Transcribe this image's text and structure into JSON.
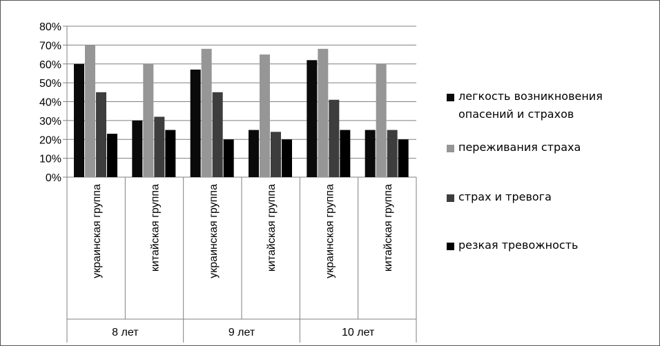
{
  "chart_data": {
    "type": "bar",
    "title": "",
    "xlabel": "",
    "ylabel": "",
    "ylim": [
      0,
      0.8
    ],
    "yticks": [
      "0%",
      "10%",
      "20%",
      "30%",
      "40%",
      "50%",
      "60%",
      "70%",
      "80%"
    ],
    "grid": true,
    "legend_position": "right",
    "groups": [
      {
        "label": "8 лет",
        "categories": [
          "украинская группа",
          "китайская группа"
        ]
      },
      {
        "label": "9 лет",
        "categories": [
          "украинская группа",
          "китайская группа"
        ]
      },
      {
        "label": "10 лет",
        "categories": [
          "украинская группа",
          "китайская группа"
        ]
      }
    ],
    "categories": [
      "украинская группа",
      "китайская группа",
      "украинская группа",
      "китайская группа",
      "украинская группа",
      "китайская группа"
    ],
    "series": [
      {
        "name": "легкость возникновения опасений и страхов",
        "color": "#0a0a0a",
        "values": [
          0.6,
          0.3,
          0.57,
          0.25,
          0.62,
          0.25
        ]
      },
      {
        "name": "переживания страха",
        "color": "#969696",
        "values": [
          0.7,
          0.6,
          0.68,
          0.65,
          0.68,
          0.6
        ]
      },
      {
        "name": "страх и тревога",
        "color": "#3d3d3d",
        "values": [
          0.45,
          0.32,
          0.45,
          0.24,
          0.41,
          0.25
        ]
      },
      {
        "name": "резкая тревожность",
        "color": "#000000",
        "values": [
          0.23,
          0.25,
          0.2,
          0.2,
          0.25,
          0.2
        ]
      }
    ]
  }
}
